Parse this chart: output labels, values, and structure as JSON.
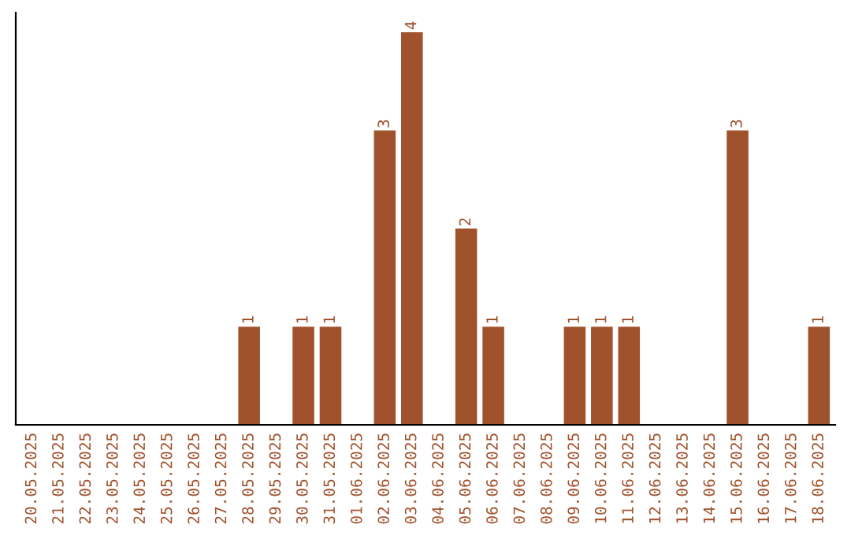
{
  "chart_data": {
    "type": "bar",
    "categories": [
      "20.05.2025",
      "21.05.2025",
      "22.05.2025",
      "23.05.2025",
      "24.05.2025",
      "25.05.2025",
      "26.05.2025",
      "27.05.2025",
      "28.05.2025",
      "29.05.2025",
      "30.05.2025",
      "31.05.2025",
      "01.06.2025",
      "02.06.2025",
      "03.06.2025",
      "04.06.2025",
      "05.06.2025",
      "06.06.2025",
      "07.06.2025",
      "08.06.2025",
      "09.06.2025",
      "10.06.2025",
      "11.06.2025",
      "12.06.2025",
      "13.06.2025",
      "14.06.2025",
      "15.06.2025",
      "16.06.2025",
      "17.06.2025",
      "18.06.2025"
    ],
    "values": [
      0,
      0,
      0,
      0,
      0,
      0,
      0,
      0,
      1,
      0,
      1,
      1,
      0,
      3,
      4,
      0,
      2,
      1,
      0,
      0,
      1,
      1,
      1,
      0,
      0,
      0,
      3,
      0,
      0,
      1
    ],
    "value_labels": [
      null,
      null,
      null,
      null,
      null,
      null,
      null,
      null,
      "1",
      null,
      "1",
      "1",
      null,
      "3",
      "4",
      null,
      "2",
      "1",
      null,
      null,
      "1",
      "1",
      "1",
      null,
      null,
      null,
      "3",
      null,
      null,
      "1"
    ],
    "color": "#a0522d",
    "tick_labels": "x",
    "grid": false,
    "legend": false
  }
}
